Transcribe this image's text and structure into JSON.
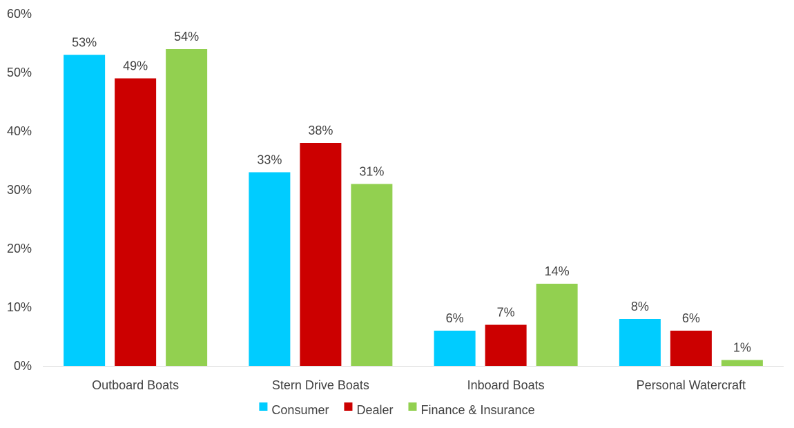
{
  "chart_data": {
    "type": "bar",
    "categories": [
      "Outboard Boats",
      "Stern Drive Boats",
      "Inboard Boats",
      "Personal Watercraft"
    ],
    "series": [
      {
        "name": "Consumer",
        "values": [
          53,
          33,
          6,
          8
        ],
        "color": "#00CCFF"
      },
      {
        "name": "Dealer",
        "values": [
          49,
          38,
          7,
          6
        ],
        "color": "#CC0000"
      },
      {
        "name": "Finance & Insurance",
        "values": [
          54,
          31,
          14,
          1
        ],
        "color": "#92D050"
      }
    ],
    "ylim": [
      0,
      60
    ],
    "yticks": [
      0,
      10,
      20,
      30,
      40,
      50,
      60
    ],
    "ytick_labels": [
      "0%",
      "10%",
      "20%",
      "30%",
      "40%",
      "50%",
      "60%"
    ],
    "value_suffix": "%",
    "grid": false,
    "legend_position": "bottom"
  }
}
